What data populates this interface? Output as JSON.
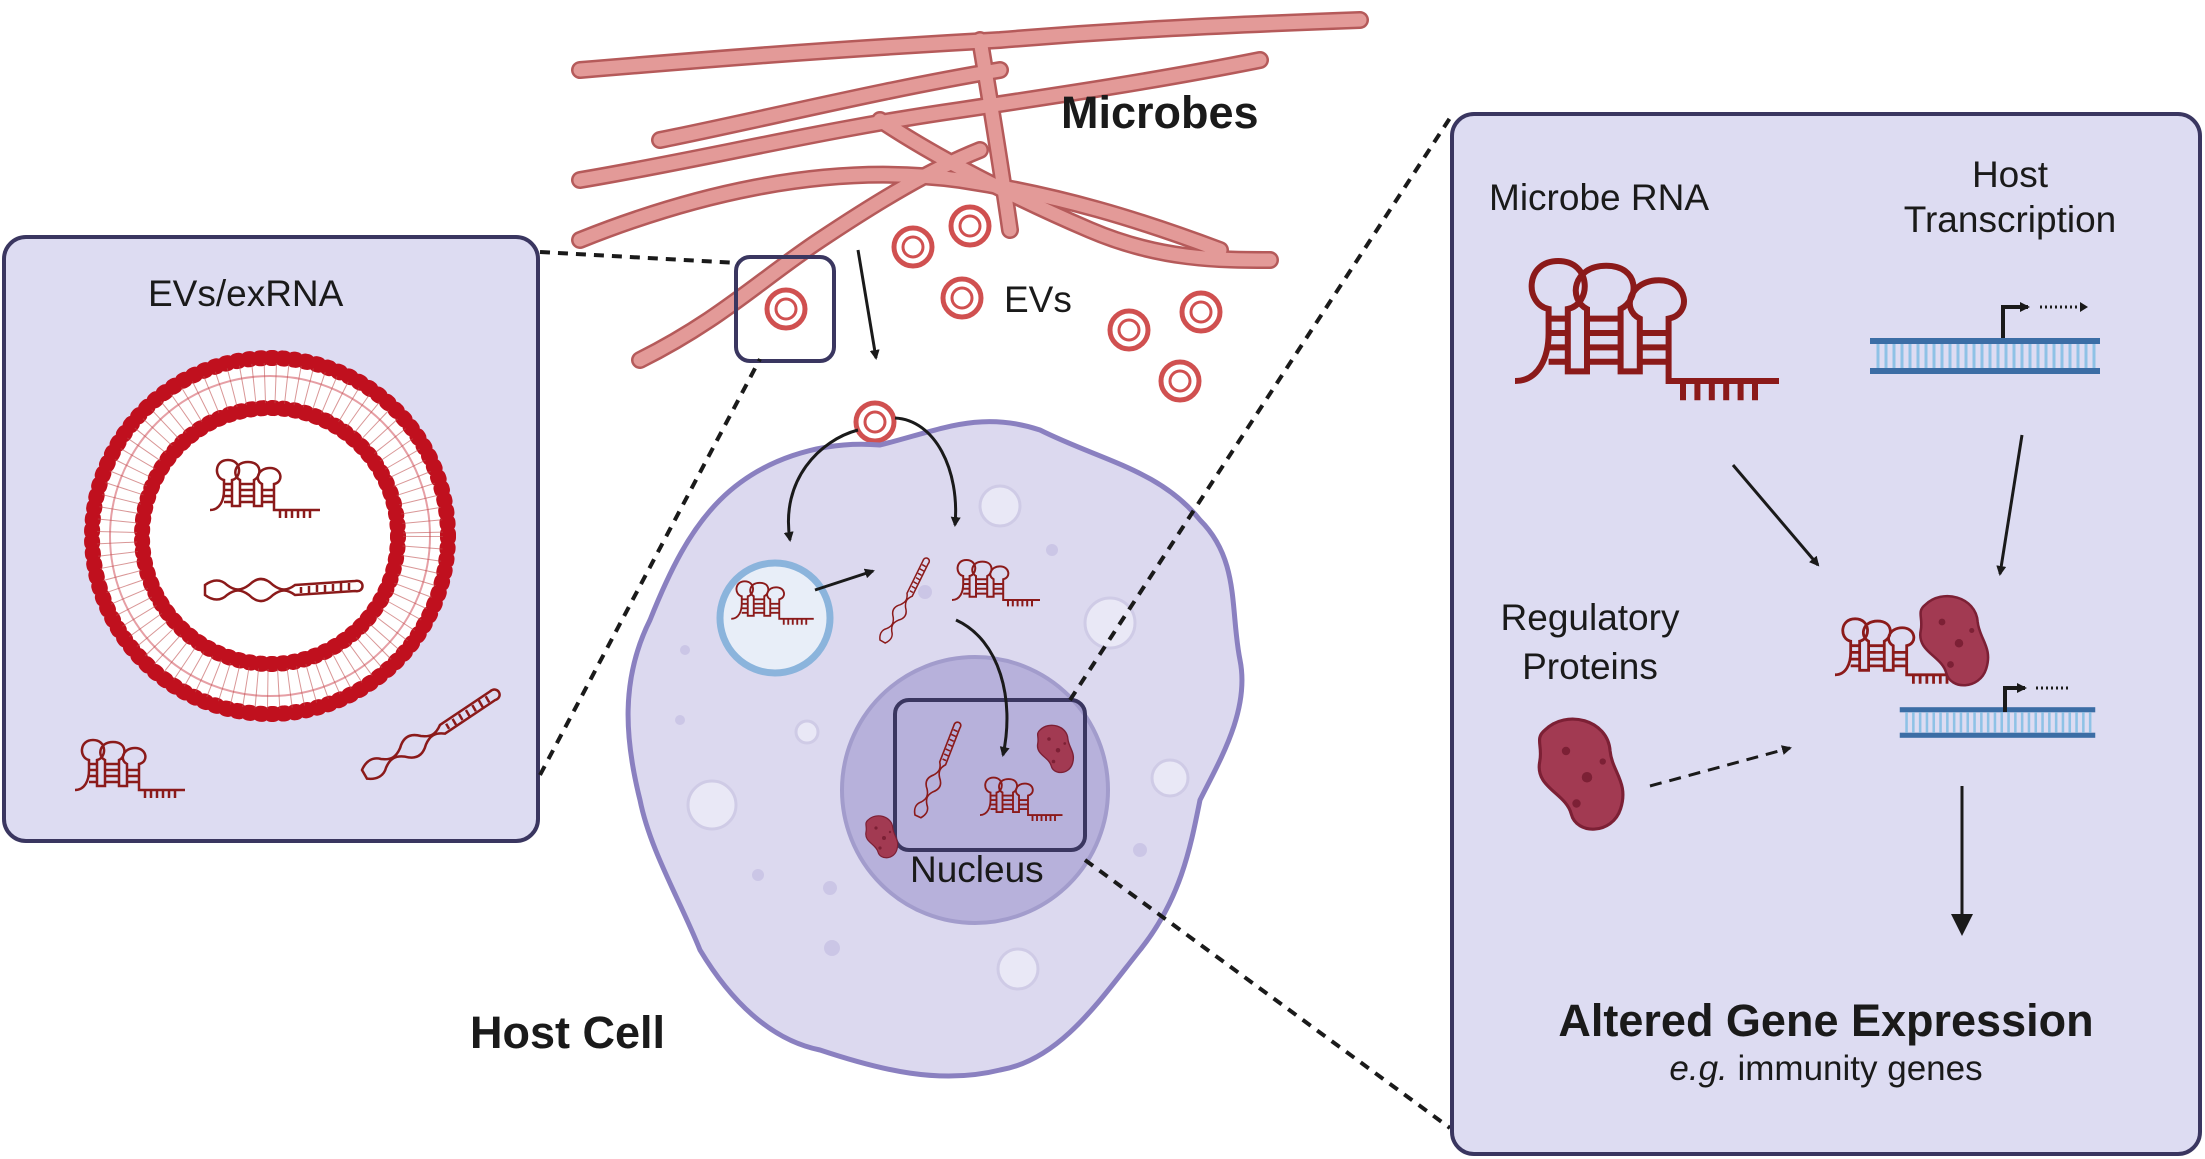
{
  "labels": {
    "microbes": "Microbes",
    "evs": "EVs",
    "evs_exrna": "EVs/exRNA",
    "nucleus": "Nucleus",
    "host_cell": "Host Cell",
    "microbe_rna": "Microbe RNA",
    "host_transcription_line1": "Host",
    "host_transcription_line2": "Transcription",
    "regulatory_proteins_line1": "Regulatory",
    "regulatory_proteins_line2": "Proteins",
    "altered_gene_expression": "Altered Gene Expression",
    "example_prefix": "e.g.",
    "example_suffix": " immunity genes"
  },
  "colors": {
    "panel_fill": "#dddcf2",
    "panel_border": "#3a3660",
    "microbe_fill": "#e39a98",
    "microbe_stroke": "#b55a5a",
    "rna": "#8b1a1a",
    "membrane_head": "#c0101e",
    "cell_fill": "#dcd9ef",
    "cell_stroke": "#8a80c0",
    "nucleus_fill": "#b7b1db",
    "protein": "#a23a52",
    "dna": "#3b6da5"
  }
}
